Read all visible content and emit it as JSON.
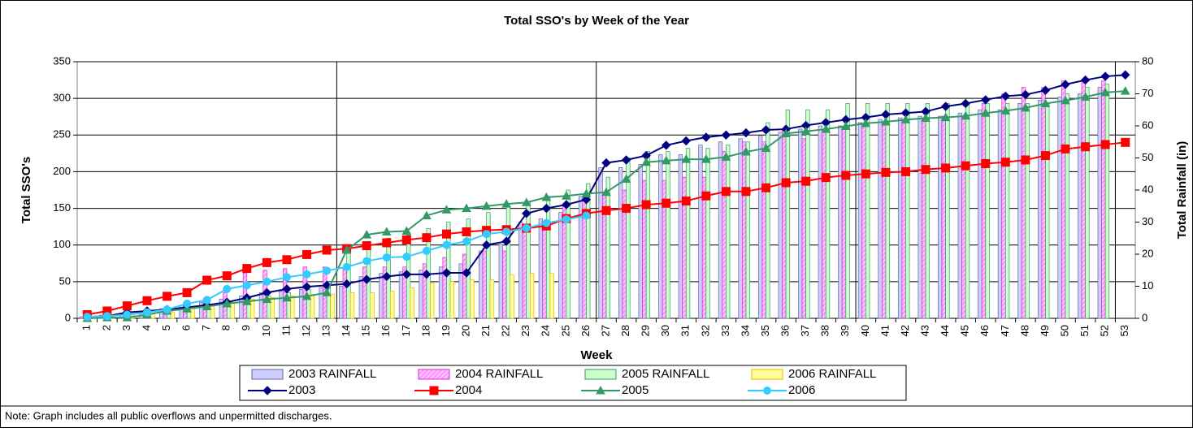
{
  "chart_data": {
    "type": "combo",
    "title": "Total SSO's by Week of the Year",
    "xlabel": "Week",
    "ylabel": "Total SSO's",
    "y2label": "Total Rainfall (in)",
    "note": "Note:  Graph includes all public overflows and unpermitted discharges.",
    "categories": [
      "1",
      "2",
      "3",
      "4",
      "5",
      "6",
      "7",
      "8",
      "9",
      "10",
      "11",
      "12",
      "13",
      "14",
      "15",
      "16",
      "17",
      "18",
      "19",
      "20",
      "21",
      "22",
      "23",
      "24",
      "25",
      "26",
      "27",
      "28",
      "29",
      "30",
      "31",
      "32",
      "33",
      "34",
      "35",
      "36",
      "37",
      "38",
      "39",
      "40",
      "41",
      "42",
      "43",
      "44",
      "45",
      "46",
      "47",
      "48",
      "49",
      "50",
      "51",
      "52",
      "53"
    ],
    "ylim": [
      0,
      350
    ],
    "yticks": [
      0,
      50,
      100,
      150,
      200,
      250,
      300,
      350
    ],
    "y2lim": [
      0,
      80
    ],
    "y2ticks": [
      0,
      10,
      20,
      30,
      40,
      50,
      60,
      70,
      80
    ],
    "grid": true,
    "series": [
      {
        "name": "2003 RAINFALL",
        "type": "bar",
        "axis": "y2",
        "color": "#ccccff",
        "stroke": "#666699",
        "values": [
          0.5,
          1,
          1.5,
          2,
          3,
          4,
          5,
          6,
          7,
          8,
          8.5,
          9,
          9.5,
          10,
          13,
          14,
          14.5,
          15,
          16,
          17,
          21,
          23,
          30,
          31,
          33,
          38,
          47,
          47,
          48,
          51,
          51,
          54,
          55,
          56,
          57,
          58,
          59,
          60,
          60,
          61,
          62,
          62.5,
          63,
          63,
          64,
          65,
          65,
          67,
          68,
          69,
          70,
          72,
          null
        ]
      },
      {
        "name": "2004 RAINFALL",
        "type": "bar",
        "axis": "y2",
        "color": "#ff99ff",
        "stroke": "#cc33cc",
        "hatch": true,
        "values": [
          0.3,
          0.5,
          1,
          1.5,
          2,
          3,
          5,
          8,
          14,
          15,
          15.5,
          16,
          16,
          16,
          16,
          16,
          16,
          17,
          19,
          20,
          21,
          21,
          28,
          30,
          35,
          38,
          39,
          40,
          43,
          43,
          44,
          44,
          52,
          55,
          55,
          59,
          56,
          58,
          59,
          60,
          61,
          62,
          62,
          63,
          63,
          67,
          70,
          72,
          72,
          74,
          74,
          74,
          null
        ]
      },
      {
        "name": "2005 RAINFALL",
        "type": "bar",
        "axis": "y2",
        "color": "#ccffcc",
        "stroke": "#339966",
        "values": [
          0.2,
          0.5,
          1,
          1.5,
          2,
          3,
          4,
          5,
          6,
          7,
          8,
          9,
          10,
          21,
          24,
          25,
          26,
          28,
          30,
          31,
          33,
          35,
          36,
          38,
          40,
          42,
          44,
          50,
          52,
          52,
          53,
          53,
          54,
          55,
          61,
          65,
          65,
          65,
          67,
          67,
          67,
          67,
          67,
          67,
          67,
          67,
          67,
          67,
          67,
          70,
          72,
          73,
          null
        ]
      },
      {
        "name": "2006 RAINFALL",
        "type": "bar",
        "axis": "y2",
        "color": "#ffff99",
        "stroke": "#e6b800",
        "values": [
          0.2,
          0.5,
          1,
          1.5,
          2,
          3,
          4,
          5,
          6,
          6.5,
          7,
          7.5,
          7.5,
          8,
          8,
          8.5,
          9.5,
          11,
          11.5,
          12,
          12,
          13.5,
          14,
          14,
          null,
          null,
          null,
          null,
          null,
          null,
          null,
          null,
          null,
          null,
          null,
          null,
          null,
          null,
          null,
          null,
          null,
          null,
          null,
          null,
          null,
          null,
          null,
          null,
          null,
          null,
          null,
          null,
          null
        ]
      },
      {
        "name": "2003",
        "type": "line",
        "color": "#000080",
        "marker": "diamond",
        "values": [
          2,
          3,
          8,
          10,
          12,
          15,
          18,
          22,
          28,
          35,
          40,
          43,
          45,
          47,
          53,
          57,
          60,
          60,
          62,
          62,
          100,
          105,
          143,
          150,
          155,
          162,
          212,
          216,
          222,
          236,
          242,
          247,
          250,
          253,
          257,
          258,
          263,
          267,
          271,
          274,
          278,
          280,
          282,
          289,
          293,
          298,
          303,
          305,
          311,
          319,
          325,
          330,
          332
        ]
      },
      {
        "name": "2004",
        "type": "line",
        "color": "#ff0000",
        "marker": "square",
        "values": [
          5,
          10,
          17,
          24,
          30,
          35,
          52,
          58,
          68,
          76,
          80,
          87,
          93,
          95,
          99,
          103,
          107,
          110,
          115,
          118,
          120,
          121,
          123,
          126,
          136,
          143,
          147,
          150,
          155,
          157,
          160,
          167,
          173,
          173,
          178,
          185,
          187,
          192,
          195,
          197,
          199,
          200,
          203,
          205,
          208,
          211,
          213,
          216,
          222,
          231,
          234,
          237,
          240
        ]
      },
      {
        "name": "2005",
        "type": "line",
        "color": "#339966",
        "marker": "triangle",
        "values": [
          0,
          1,
          1,
          5,
          10,
          13,
          16,
          20,
          23,
          26,
          28,
          30,
          35,
          93,
          114,
          118,
          119,
          140,
          148,
          150,
          153,
          156,
          158,
          165,
          167,
          170,
          172,
          190,
          213,
          215,
          217,
          217,
          220,
          227,
          232,
          252,
          255,
          258,
          262,
          266,
          268,
          271,
          273,
          274,
          276,
          280,
          283,
          287,
          293,
          297,
          302,
          308,
          310
        ]
      },
      {
        "name": "2006",
        "type": "line",
        "color": "#33ccff",
        "marker": "circle",
        "values": [
          2,
          3,
          5,
          8,
          12,
          20,
          25,
          40,
          45,
          50,
          56,
          60,
          65,
          70,
          78,
          83,
          84,
          92,
          100,
          105,
          115,
          118,
          123,
          130,
          135,
          140,
          null,
          null,
          null,
          null,
          null,
          null,
          null,
          null,
          null,
          null,
          null,
          null,
          null,
          null,
          null,
          null,
          null,
          null,
          null,
          null,
          null,
          null,
          null,
          null,
          null,
          null,
          null
        ]
      }
    ]
  }
}
